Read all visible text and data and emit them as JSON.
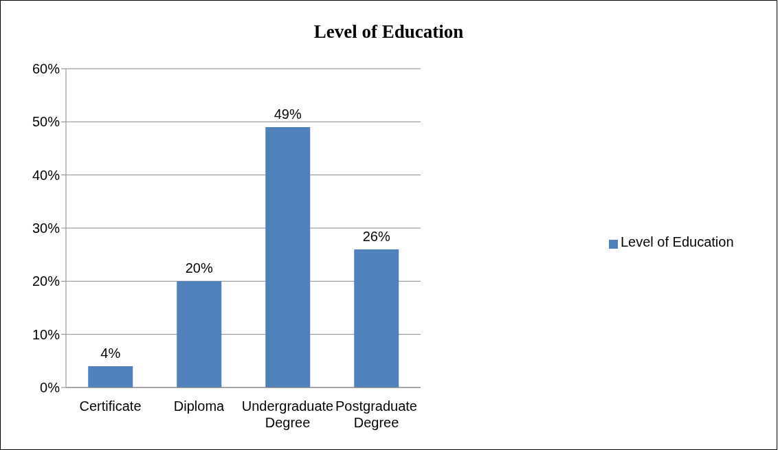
{
  "chart_data": {
    "type": "bar",
    "title": "Level of Education",
    "categories": [
      "Certificate",
      "Diploma",
      "Undergraduate Degree",
      "Postgraduate Degree"
    ],
    "series": [
      {
        "name": "Level of Education",
        "color": "#4f81bd",
        "values": [
          4,
          20,
          49,
          26
        ],
        "value_labels": [
          "4%",
          "20%",
          "49%",
          "26%"
        ]
      }
    ],
    "ylim": [
      0,
      60
    ],
    "yticks": [
      {
        "value": 0,
        "label": "0%"
      },
      {
        "value": 10,
        "label": "10%"
      },
      {
        "value": 20,
        "label": "20%"
      },
      {
        "value": 30,
        "label": "30%"
      },
      {
        "value": 40,
        "label": "40%"
      },
      {
        "value": 50,
        "label": "50%"
      },
      {
        "value": 60,
        "label": "60%"
      }
    ],
    "grid": "y",
    "legend": "right"
  }
}
